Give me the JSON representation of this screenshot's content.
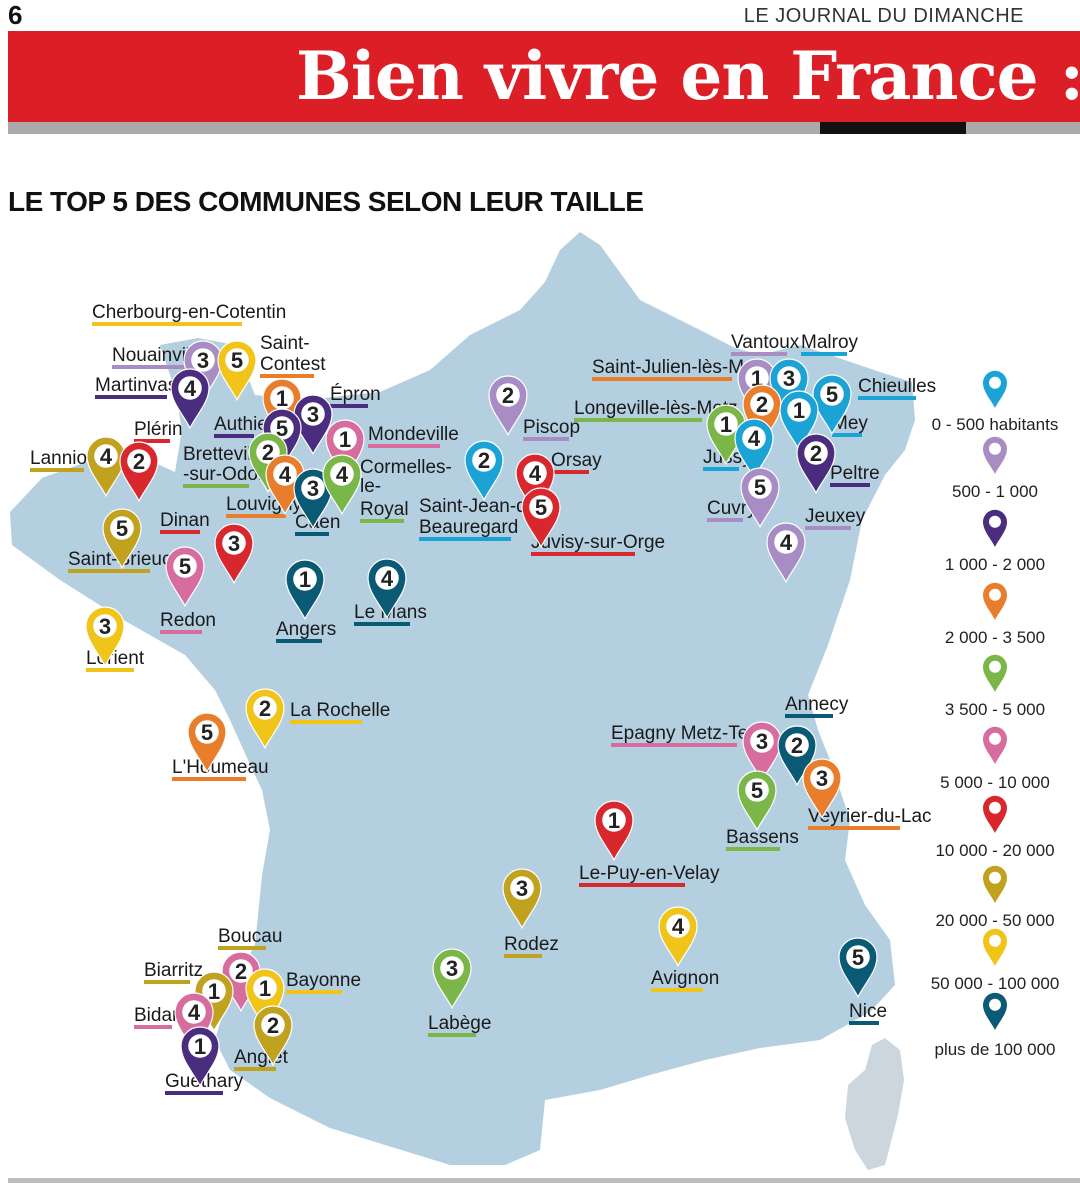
{
  "header": {
    "page_number": "6",
    "journal": "LE JOURNAL DU DIMANCHE",
    "banner_title": "Bien vivre en France : le ch"
  },
  "section_title": "LE TOP 5 DES COMMUNES SELON LEUR TAILLE",
  "colors": {
    "map_fill": "#b3cfe0",
    "corsica_fill": "#cbd6de",
    "c0_500": "#1ba3d6",
    "c500_1000": "#a88dc4",
    "c1000_2000": "#4b2d7f",
    "c2000_3500": "#e87e2b",
    "c3500_5000": "#7ab648",
    "c5000_10000": "#d76c9e",
    "c10000_20000": "#d9272e",
    "c20000_50000": "#c1a21f",
    "c50000_100000": "#f0c419",
    "c100000_plus": "#0a5a75"
  },
  "legend": [
    {
      "label": "0 - 500 habitants",
      "color": "#1ba3d6"
    },
    {
      "label": "500 - 1 000",
      "color": "#a88dc4"
    },
    {
      "label": "1 000 - 2 000",
      "color": "#4b2d7f"
    },
    {
      "label": "2 000 - 3 500",
      "color": "#e87e2b"
    },
    {
      "label": "3 500 - 5 000",
      "color": "#7ab648"
    },
    {
      "label": "5 000 - 10 000",
      "color": "#d76c9e"
    },
    {
      "label": "10 000 - 20 000",
      "color": "#d9272e"
    },
    {
      "label": "20 000 - 50 000",
      "color": "#c1a21f"
    },
    {
      "label": "50 000 - 100 000",
      "color": "#f0c419"
    },
    {
      "label": "plus de 100 000",
      "color": "#0a5a75"
    }
  ],
  "markers": [
    {
      "rank": "3",
      "color": "#a88dc4"
    },
    {
      "rank": "5",
      "color": "#f0c419"
    },
    {
      "rank": "4",
      "color": "#4b2d7f"
    },
    {
      "rank": "1",
      "color": "#e87e2b"
    },
    {
      "rank": "3",
      "color": "#4b2d7f"
    },
    {
      "rank": "5",
      "color": "#4b2d7f"
    },
    {
      "rank": "1",
      "color": "#d76c9e"
    },
    {
      "rank": "2",
      "color": "#7ab648"
    },
    {
      "rank": "4",
      "color": "#e87e2b"
    },
    {
      "rank": "3",
      "color": "#0a5a75"
    },
    {
      "rank": "4",
      "color": "#7ab648"
    },
    {
      "rank": "4",
      "color": "#c1a21f"
    },
    {
      "rank": "2",
      "color": "#d9272e"
    },
    {
      "rank": "5",
      "color": "#c1a21f"
    },
    {
      "rank": "3",
      "color": "#d9272e"
    },
    {
      "rank": "5",
      "color": "#d76c9e"
    },
    {
      "rank": "3",
      "color": "#f0c419"
    },
    {
      "rank": "1",
      "color": "#0a5a75"
    },
    {
      "rank": "4",
      "color": "#0a5a75"
    },
    {
      "rank": "2",
      "color": "#a88dc4"
    },
    {
      "rank": "2",
      "color": "#1ba3d6"
    },
    {
      "rank": "4",
      "color": "#d9272e"
    },
    {
      "rank": "5",
      "color": "#d9272e"
    },
    {
      "rank": "1",
      "color": "#a88dc4"
    },
    {
      "rank": "3",
      "color": "#1ba3d6"
    },
    {
      "rank": "5",
      "color": "#1ba3d6"
    },
    {
      "rank": "2",
      "color": "#e87e2b"
    },
    {
      "rank": "1",
      "color": "#1ba3d6"
    },
    {
      "rank": "1",
      "color": "#7ab648"
    },
    {
      "rank": "4",
      "color": "#1ba3d6"
    },
    {
      "rank": "2",
      "color": "#4b2d7f"
    },
    {
      "rank": "5",
      "color": "#a88dc4"
    },
    {
      "rank": "4",
      "color": "#a88dc4"
    },
    {
      "rank": "2",
      "color": "#f0c419"
    },
    {
      "rank": "5",
      "color": "#e87e2b"
    },
    {
      "rank": "3",
      "color": "#d76c9e"
    },
    {
      "rank": "2",
      "color": "#0a5a75"
    },
    {
      "rank": "3",
      "color": "#e87e2b"
    },
    {
      "rank": "5",
      "color": "#7ab648"
    },
    {
      "rank": "1",
      "color": "#d9272e"
    },
    {
      "rank": "3",
      "color": "#c1a21f"
    },
    {
      "rank": "4",
      "color": "#f0c419"
    },
    {
      "rank": "3",
      "color": "#7ab648"
    },
    {
      "rank": "5",
      "color": "#0a5a75"
    },
    {
      "rank": "2",
      "color": "#d76c9e"
    },
    {
      "rank": "1",
      "color": "#c1a21f"
    },
    {
      "rank": "1",
      "color": "#f0c419"
    },
    {
      "rank": "4",
      "color": "#d76c9e"
    },
    {
      "rank": "2",
      "color": "#c1a21f"
    },
    {
      "rank": "1",
      "color": "#4b2d7f"
    }
  ],
  "labels": [
    {
      "text": "Cherbourg-en-Cotentin",
      "color": "#f0c419"
    },
    {
      "text": "Nouainville",
      "color": "#a88dc4"
    },
    {
      "text": "Martinvast",
      "color": "#4b2d7f"
    },
    {
      "text": "Saint-",
      "color": ""
    },
    {
      "text": "Contest",
      "color": "#e87e2b"
    },
    {
      "text": "Épron",
      "color": "#4b2d7f"
    },
    {
      "text": "Authie",
      "color": "#4b2d7f"
    },
    {
      "text": "Mondeville",
      "color": "#d76c9e"
    },
    {
      "text": "Plérin",
      "color": "#d9272e"
    },
    {
      "text": "Bretteville",
      "color": ""
    },
    {
      "text": "-sur-Odon",
      "color": "#7ab648"
    },
    {
      "text": "Cormelles-",
      "color": ""
    },
    {
      "text": "le-",
      "color": ""
    },
    {
      "text": "Royal",
      "color": "#7ab648"
    },
    {
      "text": "Lannion",
      "color": "#c1a21f"
    },
    {
      "text": "Louvigny",
      "color": "#e87e2b"
    },
    {
      "text": "Caen",
      "color": "#0a5a75"
    },
    {
      "text": "Dinan",
      "color": "#d9272e"
    },
    {
      "text": "Saint-Brieuc",
      "color": "#c1a21f"
    },
    {
      "text": "Redon",
      "color": "#d76c9e"
    },
    {
      "text": "Lorient",
      "color": "#f0c419"
    },
    {
      "text": "Angers",
      "color": "#0a5a75"
    },
    {
      "text": "Le Mans",
      "color": "#0a5a75"
    },
    {
      "text": "Piscop",
      "color": "#a88dc4"
    },
    {
      "text": "Orsay",
      "color": "#d9272e"
    },
    {
      "text": "Saint-Jean-de",
      "color": ""
    },
    {
      "text": "Beauregard",
      "color": "#1ba3d6"
    },
    {
      "text": "Juvisy-sur-Orge",
      "color": "#d9272e"
    },
    {
      "text": "Vantoux",
      "color": "#a88dc4"
    },
    {
      "text": "Malroy",
      "color": "#1ba3d6"
    },
    {
      "text": "Saint-Julien-lès-Metz",
      "color": "#e87e2b"
    },
    {
      "text": "Chieulles",
      "color": "#1ba3d6"
    },
    {
      "text": "Longeville-lès-Metz",
      "color": "#7ab648"
    },
    {
      "text": "Mey",
      "color": "#1ba3d6"
    },
    {
      "text": "Jussy",
      "color": "#1ba3d6"
    },
    {
      "text": "Peltre",
      "color": "#4b2d7f"
    },
    {
      "text": "Cuvry",
      "color": "#a88dc4"
    },
    {
      "text": "Jeuxey",
      "color": "#a88dc4"
    },
    {
      "text": "La Rochelle",
      "color": "#f0c419"
    },
    {
      "text": "L'Houmeau",
      "color": "#e87e2b"
    },
    {
      "text": "Annecy",
      "color": "#0a5a75"
    },
    {
      "text": "Epagny Metz-Tessy",
      "color": "#d76c9e"
    },
    {
      "text": "Veyrier-du-Lac",
      "color": "#e87e2b"
    },
    {
      "text": "Bassens",
      "color": "#7ab648"
    },
    {
      "text": "Le-Puy-en-Velay",
      "color": "#d9272e"
    },
    {
      "text": "Rodez",
      "color": "#c1a21f"
    },
    {
      "text": "Avignon",
      "color": "#f0c419"
    },
    {
      "text": "Labège",
      "color": "#7ab648"
    },
    {
      "text": "Nice",
      "color": "#0a5a75"
    },
    {
      "text": "Boucau",
      "color": "#c1a21f"
    },
    {
      "text": "Biarritz",
      "color": "#c1a21f"
    },
    {
      "text": "Bayonne",
      "color": "#f0c419"
    },
    {
      "text": "Bidart",
      "color": "#d76c9e"
    },
    {
      "text": "Anglet",
      "color": "#c1a21f"
    },
    {
      "text": "Guéthary",
      "color": "#4b2d7f"
    }
  ]
}
